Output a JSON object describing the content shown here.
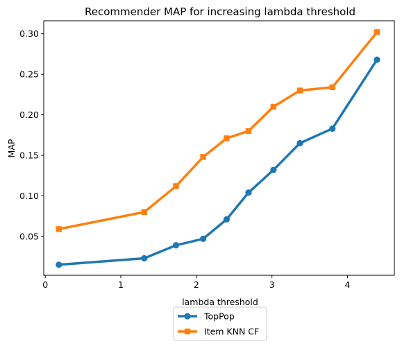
{
  "chart_data": {
    "type": "line",
    "title": "Recommender MAP for increasing lambda threshold",
    "xlabel": "lambda threshold",
    "ylabel": "MAP",
    "xlim": [
      -0.02,
      4.62
    ],
    "ylim": [
      0.002,
      0.316
    ],
    "xticks": [
      0,
      1,
      2,
      3,
      4
    ],
    "xtick_labels": [
      "0",
      "1",
      "2",
      "3",
      "4"
    ],
    "yticks": [
      0.05,
      0.1,
      0.15,
      0.2,
      0.25,
      0.3
    ],
    "ytick_labels": [
      "0.05",
      "0.10",
      "0.15",
      "0.20",
      "0.25",
      "0.30"
    ],
    "grid": false,
    "legend_position": "below-center",
    "series": [
      {
        "name": "TopPop",
        "color": "#1f77b4",
        "marker": "circle",
        "x": [
          0.18,
          1.31,
          1.73,
          2.09,
          2.4,
          2.69,
          3.02,
          3.37,
          3.8,
          4.39
        ],
        "y": [
          0.015,
          0.023,
          0.039,
          0.047,
          0.071,
          0.104,
          0.132,
          0.165,
          0.183,
          0.268
        ]
      },
      {
        "name": "Item KNN CF",
        "color": "#ff7f0e",
        "marker": "square",
        "x": [
          0.18,
          1.31,
          1.73,
          2.09,
          2.4,
          2.69,
          3.02,
          3.37,
          3.8,
          4.39
        ],
        "y": [
          0.059,
          0.08,
          0.112,
          0.148,
          0.171,
          0.18,
          0.21,
          0.23,
          0.234,
          0.302
        ]
      }
    ]
  }
}
